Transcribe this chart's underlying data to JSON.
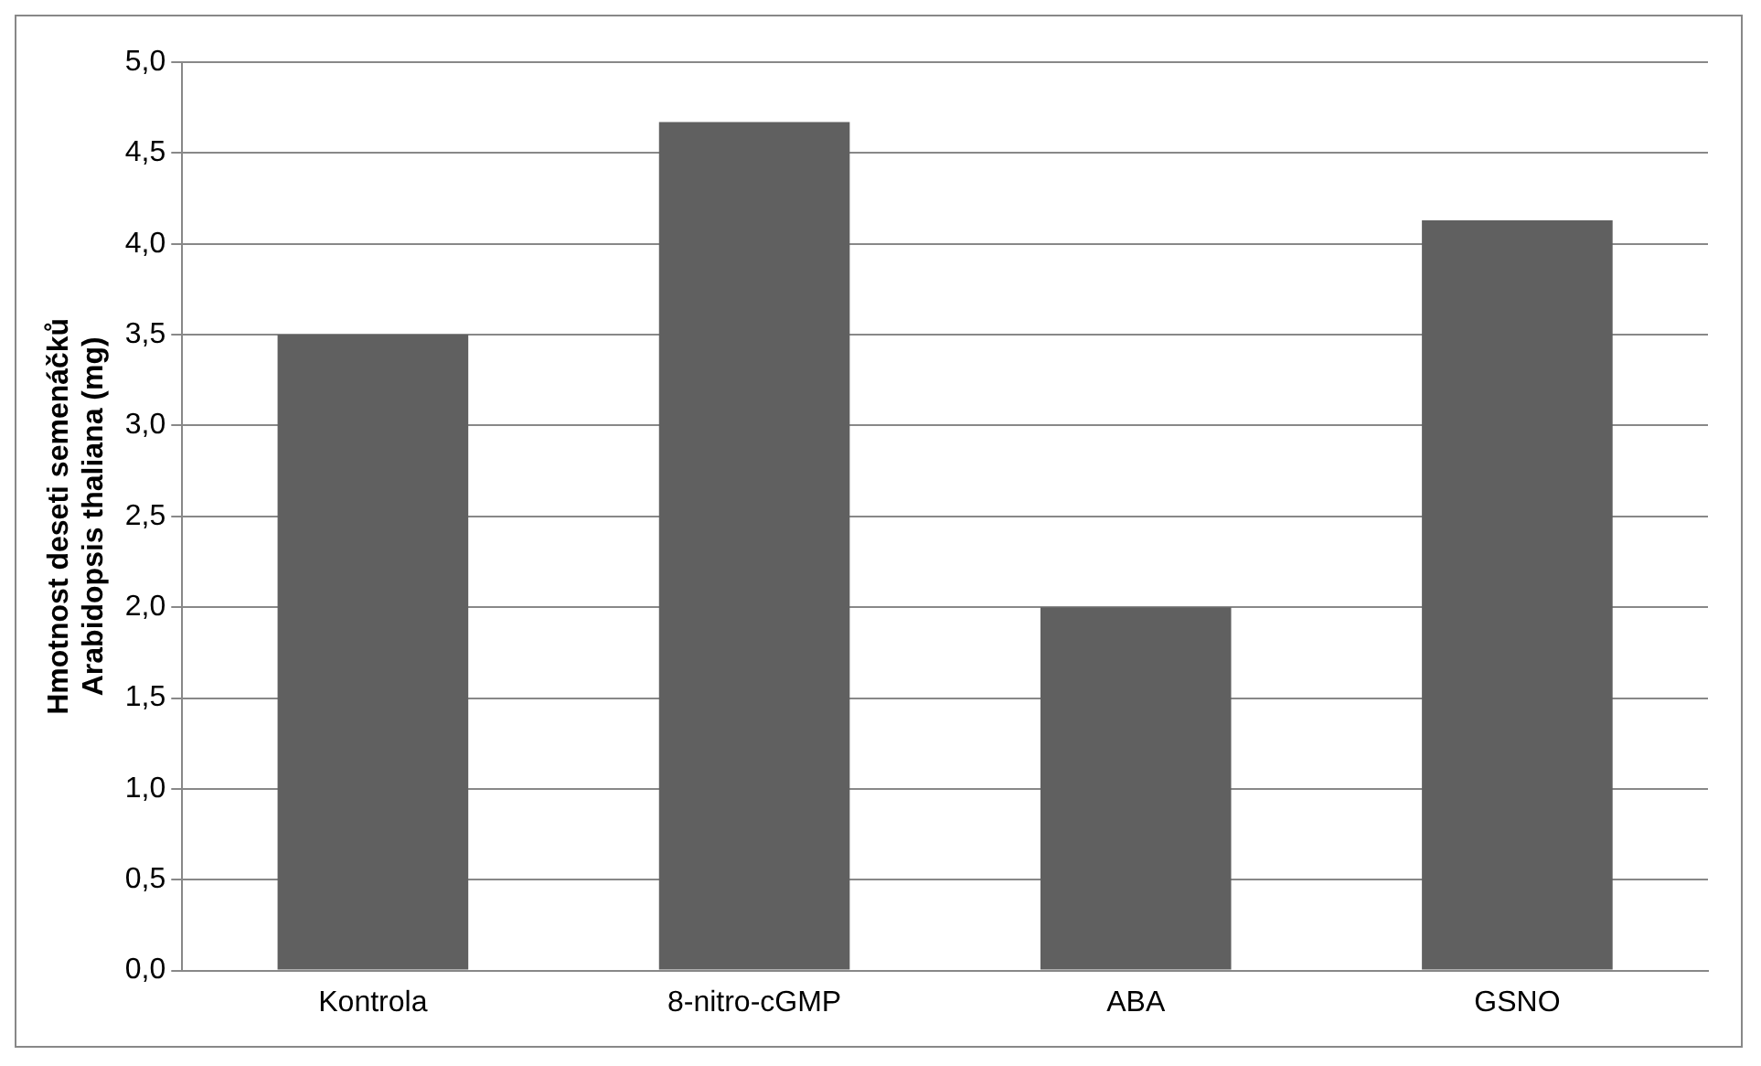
{
  "chart_data": {
    "type": "bar",
    "ylabel": "Hmotnost deseti semenáčků\nArabidopsis thaliana (mg)",
    "categories": [
      "Kontrola",
      "8-nitro-cGMP",
      "ABA",
      "GSNO"
    ],
    "values": [
      3.5,
      4.67,
      2.0,
      4.13
    ],
    "color": "#606060",
    "ylim": [
      0,
      5
    ],
    "yticks": [
      {
        "value": 0,
        "label": "0,0"
      },
      {
        "value": 0.5,
        "label": "0,5"
      },
      {
        "value": 1,
        "label": "1,0"
      },
      {
        "value": 1.5,
        "label": "1,5"
      },
      {
        "value": 2,
        "label": "2,0"
      },
      {
        "value": 2.5,
        "label": "2,5"
      },
      {
        "value": 3,
        "label": "3,0"
      },
      {
        "value": 3.5,
        "label": "3,5"
      },
      {
        "value": 4,
        "label": "4,0"
      },
      {
        "value": 4.5,
        "label": "4,5"
      },
      {
        "value": 5,
        "label": "5,0"
      }
    ],
    "grid": "y",
    "legend": false
  }
}
